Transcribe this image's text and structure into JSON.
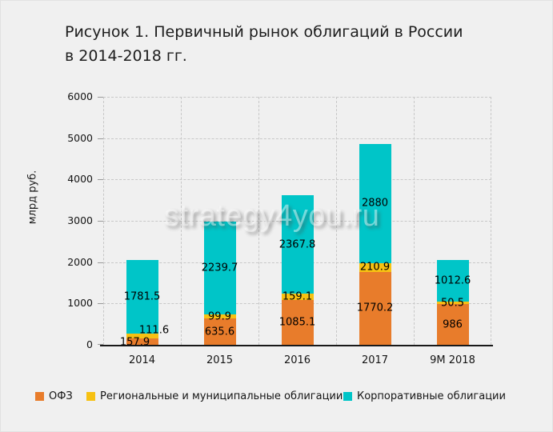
{
  "title": {
    "line1": "Рисунок 1. Первичный рынок облигаций в России",
    "line2": "в 2014-2018 гг."
  },
  "watermark": "strategy4you.ru",
  "chart_data": {
    "type": "bar",
    "stacked": true,
    "title": "Рисунок 1. Первичный рынок облигаций в России в 2014-2018 гг.",
    "ylabel": "млрд руб.",
    "ylim": [
      0,
      6000
    ],
    "ytick_step": 1000,
    "yticks": [
      0,
      1000,
      2000,
      3000,
      4000,
      5000,
      6000
    ],
    "grid": true,
    "legend_position": "bottom",
    "categories": [
      "2014",
      "2015",
      "2016",
      "2017",
      "9М 2018"
    ],
    "series": [
      {
        "name": "ОФЗ",
        "color": "#E87C2B",
        "values": [
          157.9,
          635.6,
          1085.1,
          1770.2,
          986
        ]
      },
      {
        "name": "Региональные и муниципальные облигации",
        "color": "#F7C112",
        "values": [
          111.6,
          99.9,
          159.1,
          210.9,
          50.5
        ]
      },
      {
        "name": "Корпоративные облигации",
        "color": "#00C5C8",
        "values": [
          1781.5,
          2239.7,
          2367.8,
          2880,
          1012.6
        ]
      }
    ]
  },
  "colors": {
    "background": "#F0F0F0",
    "grid": "#C7C7C7",
    "axis": "#191919",
    "text": "#141414"
  }
}
